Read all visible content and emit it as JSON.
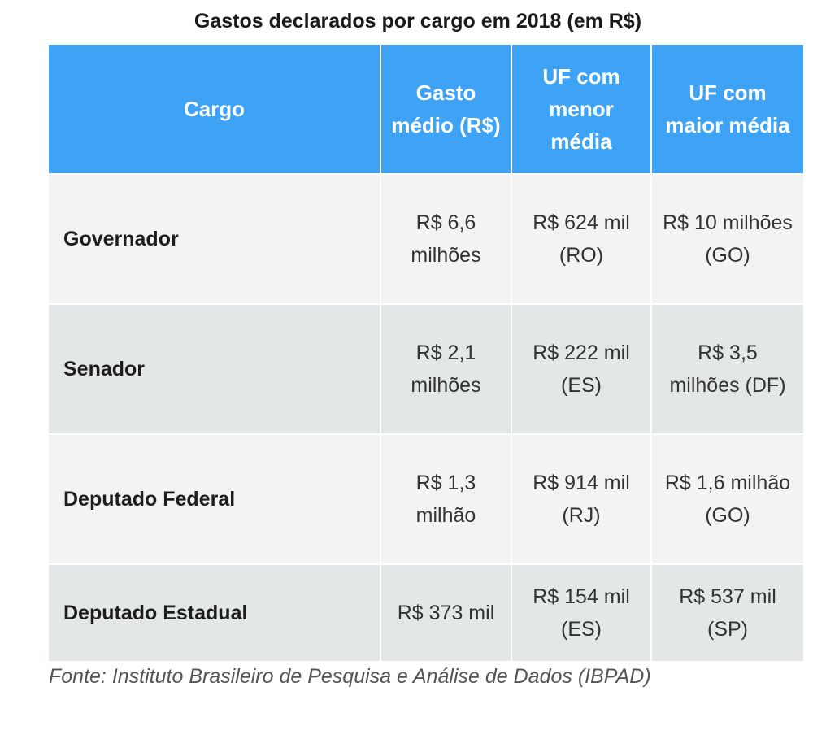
{
  "chart_data": {
    "type": "table",
    "title": "Gastos declarados por cargo em 2018 (em R$)",
    "columns": [
      "Cargo",
      "Gasto médio (R$)",
      "UF com menor média",
      "UF com maior média"
    ],
    "rows": [
      {
        "cargo": "Governador",
        "gasto_medio": "R$ 6,6 milhões",
        "uf_menor": "R$ 624 mil (RO)",
        "uf_maior": "R$ 10 milhões (GO)"
      },
      {
        "cargo": "Senador",
        "gasto_medio": "R$ 2,1 milhões",
        "uf_menor": "R$ 222 mil (ES)",
        "uf_maior": "R$ 3,5 milhões (DF)"
      },
      {
        "cargo": "Deputado Federal",
        "gasto_medio": "R$ 1,3 milhão",
        "uf_menor": "R$ 914 mil (RJ)",
        "uf_maior": "R$ 1,6 milhão (GO)"
      },
      {
        "cargo": "Deputado Estadual",
        "gasto_medio": "R$ 373 mil",
        "uf_menor": "R$ 154 mil (ES)",
        "uf_maior": "R$ 537 mil (SP)"
      }
    ],
    "source": "Fonte: Instituto Brasileiro de Pesquisa e Análise de Dados (IBPAD)"
  },
  "colors": {
    "header_bg": "#3fa3f5",
    "header_text": "#ffffff",
    "row_light": "#f3f3f3",
    "row_dark": "#e4e7e8"
  }
}
